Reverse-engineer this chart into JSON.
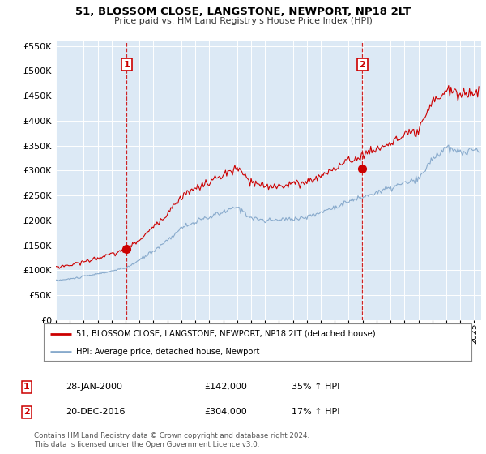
{
  "title": "51, BLOSSOM CLOSE, LANGSTONE, NEWPORT, NP18 2LT",
  "subtitle": "Price paid vs. HM Land Registry's House Price Index (HPI)",
  "ylim": [
    0,
    560000
  ],
  "yticks": [
    0,
    50000,
    100000,
    150000,
    200000,
    250000,
    300000,
    350000,
    400000,
    450000,
    500000,
    550000
  ],
  "xlim_start": 1995.0,
  "xlim_end": 2025.5,
  "background_color": "#ffffff",
  "plot_background": "#dce9f5",
  "grid_color": "#ffffff",
  "red_line_color": "#cc0000",
  "blue_line_color": "#88aacc",
  "marker1_year": 2000.08,
  "marker1_value": 142000,
  "marker2_year": 2016.97,
  "marker2_value": 304000,
  "legend_line1": "51, BLOSSOM CLOSE, LANGSTONE, NEWPORT, NP18 2LT (detached house)",
  "legend_line2": "HPI: Average price, detached house, Newport",
  "table_row1": [
    "1",
    "28-JAN-2000",
    "£142,000",
    "35% ↑ HPI"
  ],
  "table_row2": [
    "2",
    "20-DEC-2016",
    "£304,000",
    "17% ↑ HPI"
  ],
  "footer": "Contains HM Land Registry data © Crown copyright and database right 2024.\nThis data is licensed under the Open Government Licence v3.0."
}
